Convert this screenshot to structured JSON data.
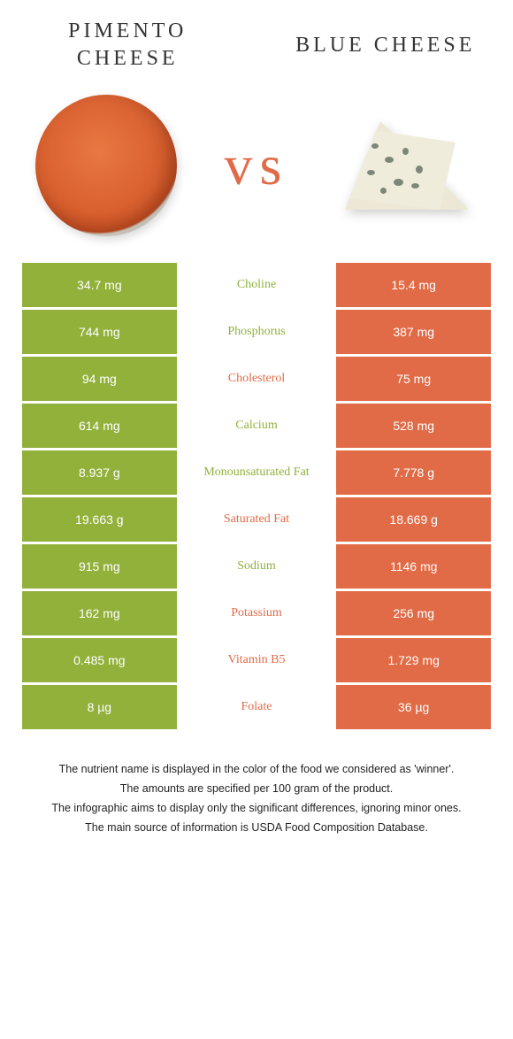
{
  "titles": {
    "left": "Pimento cheese",
    "right": "Blue cheese",
    "vs": "vs"
  },
  "colors": {
    "left_bg": "#91b13b",
    "right_bg": "#e26b47",
    "left_text": "#91b13b",
    "right_text": "#e26b47",
    "background": "#ffffff"
  },
  "rows": [
    {
      "left": "34.7 mg",
      "label": "Choline",
      "right": "15.4 mg",
      "winner": "left"
    },
    {
      "left": "744 mg",
      "label": "Phosphorus",
      "right": "387 mg",
      "winner": "left"
    },
    {
      "left": "94 mg",
      "label": "Cholesterol",
      "right": "75 mg",
      "winner": "right"
    },
    {
      "left": "614 mg",
      "label": "Calcium",
      "right": "528 mg",
      "winner": "left"
    },
    {
      "left": "8.937 g",
      "label": "Monounsaturated Fat",
      "right": "7.778 g",
      "winner": "left"
    },
    {
      "left": "19.663 g",
      "label": "Saturated Fat",
      "right": "18.669 g",
      "winner": "right"
    },
    {
      "left": "915 mg",
      "label": "Sodium",
      "right": "1146 mg",
      "winner": "left"
    },
    {
      "left": "162 mg",
      "label": "Potassium",
      "right": "256 mg",
      "winner": "right"
    },
    {
      "left": "0.485 mg",
      "label": "Vitamin B5",
      "right": "1.729 mg",
      "winner": "right"
    },
    {
      "left": "8 µg",
      "label": "Folate",
      "right": "36 µg",
      "winner": "right"
    }
  ],
  "footer": [
    "The nutrient name is displayed in the color of the food we considered as 'winner'.",
    "The amounts are specified per 100 gram of the product.",
    "The infographic aims to display only the significant differences, ignoring minor ones.",
    "The main source of information is USDA Food Composition Database."
  ],
  "typography": {
    "title_fontsize": 24,
    "title_letterspacing": 4,
    "vs_fontsize": 64,
    "cell_fontsize": 14,
    "footer_fontsize": 12.5
  }
}
